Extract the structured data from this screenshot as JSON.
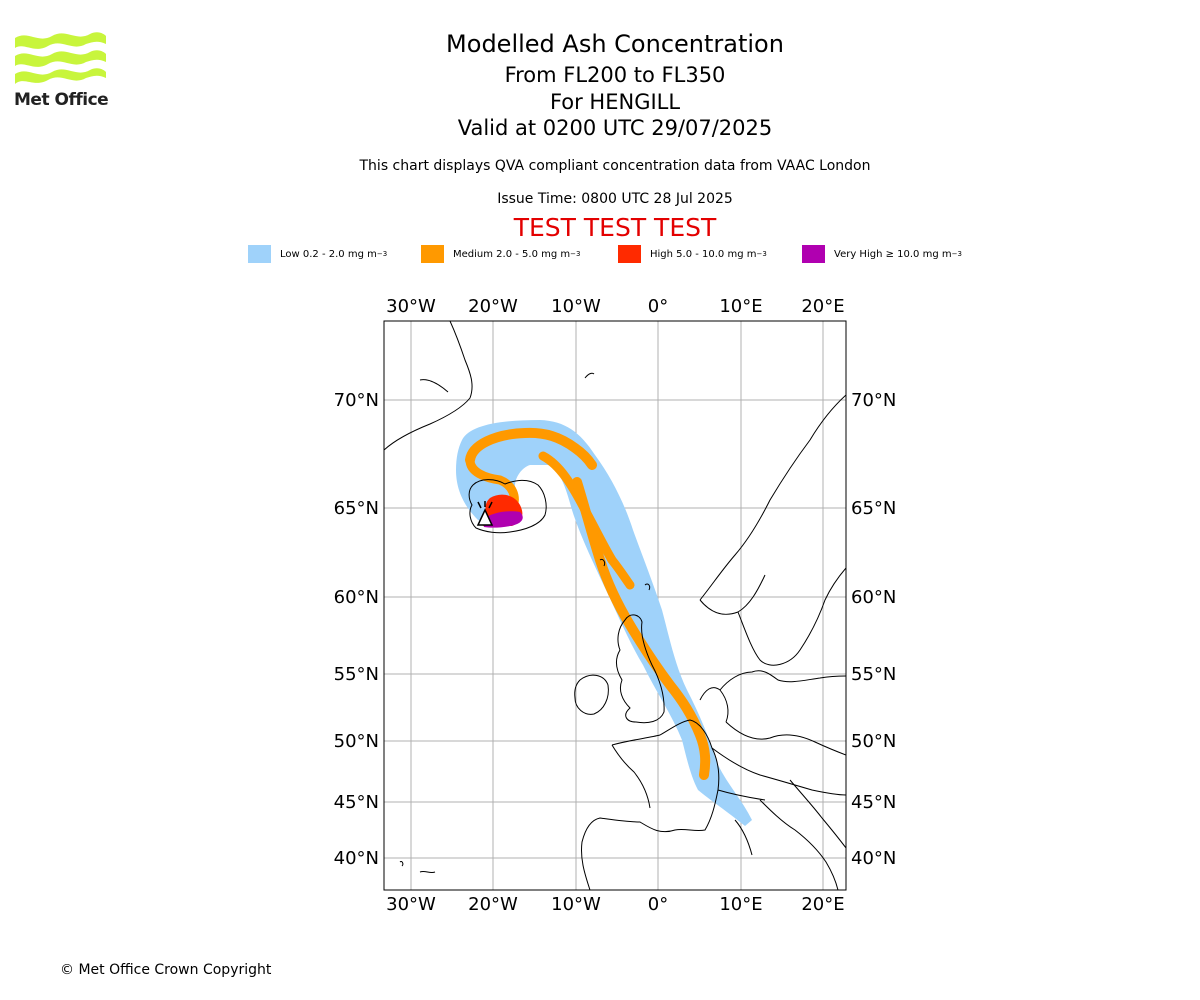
{
  "header": {
    "title": "Modelled Ash Concentration",
    "subtitle_levels": "From FL200 to FL350",
    "subtitle_volcano": "For HENGILL",
    "subtitle_valid": "Valid at 0200 UTC 29/07/2025",
    "description": "This chart displays QVA compliant concentration data from VAAC London",
    "issue_time": "Issue Time: 0800 UTC 28 Jul 2025",
    "test_banner": "TEST TEST TEST"
  },
  "logo": {
    "text": "Met Office",
    "color": "#c8f53c"
  },
  "legend": [
    {
      "label": "Low 0.2 - 2.0 mg m",
      "sup": "−3",
      "color": "#9fd2fa"
    },
    {
      "label": "Medium 2.0 - 5.0 mg m",
      "sup": "−3",
      "color": "#ff9900"
    },
    {
      "label": "High 5.0 - 10.0 mg m",
      "sup": "−3",
      "color": "#ff2a00"
    },
    {
      "label": "Very High  ≥  10.0 mg m",
      "sup": "−3",
      "color": "#b000b0"
    }
  ],
  "map": {
    "lon_labels": [
      "30°W",
      "20°W",
      "10°W",
      "0°",
      "10°E",
      "20°E"
    ],
    "lat_labels": [
      "70°N",
      "65°N",
      "60°N",
      "55°N",
      "50°N",
      "45°N",
      "40°N"
    ],
    "volcano_symbol": "volcano-marker"
  },
  "footer": {
    "copyright": "© Met Office Crown Copyright"
  }
}
